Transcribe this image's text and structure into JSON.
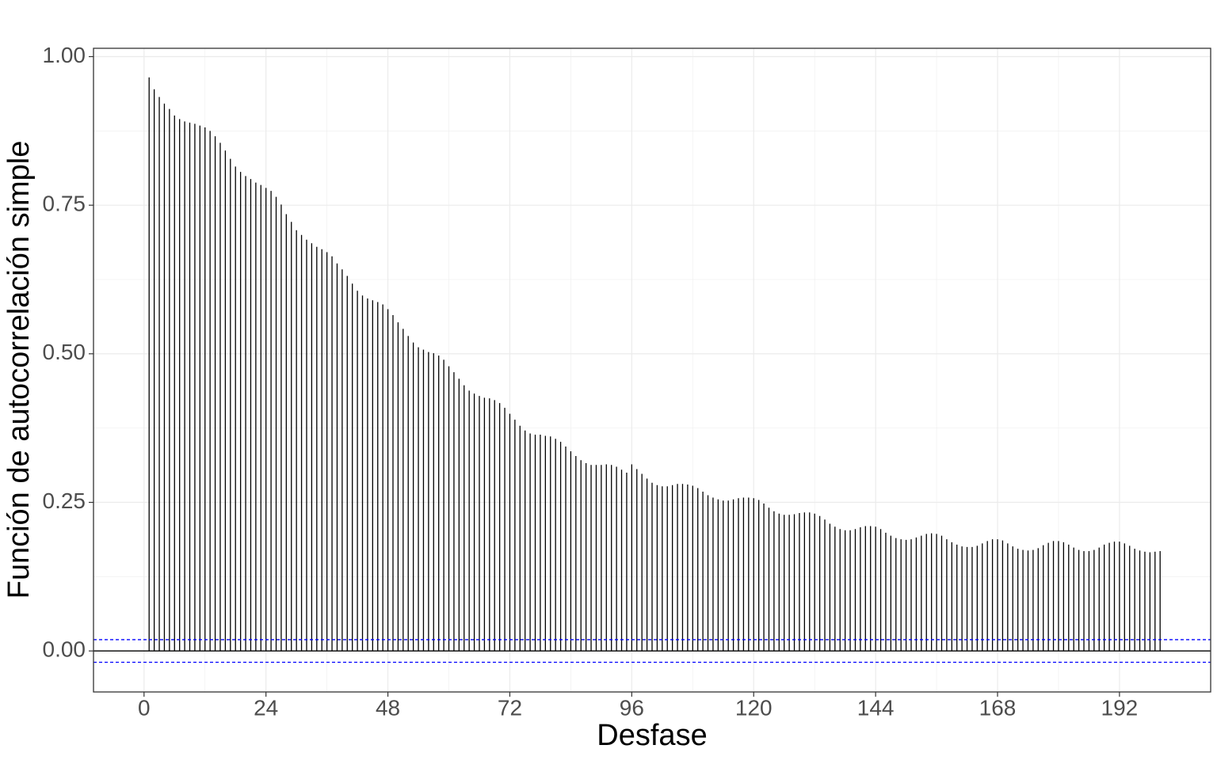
{
  "chart_data": {
    "type": "acf",
    "x_label": "Desfase",
    "y_label": "Función de autocorrelación simple",
    "x": [
      1,
      2,
      3,
      4,
      5,
      6,
      7,
      8,
      9,
      10,
      11,
      12,
      13,
      14,
      15,
      16,
      17,
      18,
      19,
      20,
      21,
      22,
      23,
      24,
      25,
      26,
      27,
      28,
      29,
      30,
      31,
      32,
      33,
      34,
      35,
      36,
      37,
      38,
      39,
      40,
      41,
      42,
      43,
      44,
      45,
      46,
      47,
      48,
      49,
      50,
      51,
      52,
      53,
      54,
      55,
      56,
      57,
      58,
      59,
      60,
      61,
      62,
      63,
      64,
      65,
      66,
      67,
      68,
      69,
      70,
      71,
      72,
      73,
      74,
      75,
      76,
      77,
      78,
      79,
      80,
      81,
      82,
      83,
      84,
      85,
      86,
      87,
      88,
      89,
      90,
      91,
      92,
      93,
      94,
      95,
      96,
      97,
      98,
      99,
      100,
      101,
      102,
      103,
      104,
      105,
      106,
      107,
      108,
      109,
      110,
      111,
      112,
      113,
      114,
      115,
      116,
      117,
      118,
      119,
      120,
      121,
      122,
      123,
      124,
      125,
      126,
      127,
      128,
      129,
      130,
      131,
      132,
      133,
      134,
      135,
      136,
      137,
      138,
      139,
      140,
      141,
      142,
      143,
      144,
      145,
      146,
      147,
      148,
      149,
      150,
      151,
      152,
      153,
      154,
      155,
      156,
      157,
      158,
      159,
      160,
      161,
      162,
      163,
      164,
      165,
      166,
      167,
      168,
      169,
      170,
      171,
      172,
      173,
      174,
      175,
      176,
      177,
      178,
      179,
      180,
      181,
      182,
      183,
      184,
      185,
      186,
      187,
      188,
      189,
      190,
      191,
      192,
      193,
      194,
      195,
      196,
      197,
      198,
      199,
      200
    ],
    "values": [
      0.965,
      0.945,
      0.932,
      0.921,
      0.912,
      0.901,
      0.895,
      0.891,
      0.889,
      0.887,
      0.884,
      0.881,
      0.875,
      0.866,
      0.855,
      0.842,
      0.828,
      0.815,
      0.806,
      0.799,
      0.794,
      0.788,
      0.784,
      0.779,
      0.774,
      0.764,
      0.751,
      0.735,
      0.722,
      0.708,
      0.7,
      0.692,
      0.686,
      0.68,
      0.676,
      0.671,
      0.664,
      0.652,
      0.642,
      0.631,
      0.618,
      0.606,
      0.598,
      0.593,
      0.59,
      0.587,
      0.583,
      0.575,
      0.565,
      0.553,
      0.542,
      0.53,
      0.519,
      0.511,
      0.507,
      0.503,
      0.501,
      0.497,
      0.49,
      0.479,
      0.469,
      0.458,
      0.447,
      0.438,
      0.433,
      0.429,
      0.426,
      0.425,
      0.422,
      0.417,
      0.409,
      0.399,
      0.389,
      0.379,
      0.371,
      0.366,
      0.364,
      0.364,
      0.362,
      0.361,
      0.357,
      0.352,
      0.344,
      0.336,
      0.328,
      0.321,
      0.316,
      0.313,
      0.313,
      0.313,
      0.314,
      0.313,
      0.31,
      0.305,
      0.3,
      0.314,
      0.306,
      0.298,
      0.29,
      0.283,
      0.279,
      0.277,
      0.277,
      0.279,
      0.281,
      0.281,
      0.28,
      0.278,
      0.274,
      0.268,
      0.262,
      0.258,
      0.255,
      0.253,
      0.253,
      0.255,
      0.257,
      0.258,
      0.258,
      0.257,
      0.254,
      0.248,
      0.241,
      0.235,
      0.231,
      0.229,
      0.229,
      0.23,
      0.232,
      0.233,
      0.233,
      0.231,
      0.227,
      0.221,
      0.214,
      0.209,
      0.205,
      0.203,
      0.203,
      0.205,
      0.208,
      0.21,
      0.21,
      0.209,
      0.205,
      0.199,
      0.194,
      0.19,
      0.188,
      0.187,
      0.188,
      0.191,
      0.194,
      0.197,
      0.198,
      0.197,
      0.194,
      0.188,
      0.183,
      0.179,
      0.176,
      0.175,
      0.175,
      0.177,
      0.181,
      0.185,
      0.188,
      0.188,
      0.186,
      0.181,
      0.176,
      0.172,
      0.17,
      0.169,
      0.17,
      0.173,
      0.178,
      0.182,
      0.185,
      0.185,
      0.183,
      0.179,
      0.174,
      0.17,
      0.168,
      0.168,
      0.17,
      0.174,
      0.179,
      0.182,
      0.184,
      0.184,
      0.181,
      0.177,
      0.172,
      0.169,
      0.167,
      0.166,
      0.167,
      0.168
    ],
    "color": "#000000",
    "conf_bounds": [
      0.019,
      -0.019
    ],
    "conf_color": "#0000ff",
    "xlim": [
      -9.95,
      209.95
    ],
    "ylim": [
      -0.069,
      1.014
    ],
    "xticks": [
      0,
      24,
      48,
      72,
      96,
      120,
      144,
      168,
      192
    ],
    "yticks": [
      {
        "value": 0,
        "label": "0.00"
      },
      {
        "value": 0.25,
        "label": "0.25"
      },
      {
        "value": 0.5,
        "label": "0.50"
      },
      {
        "value": 0.75,
        "label": "0.75"
      },
      {
        "value": 1,
        "label": "1.00"
      }
    ],
    "grid": true
  }
}
